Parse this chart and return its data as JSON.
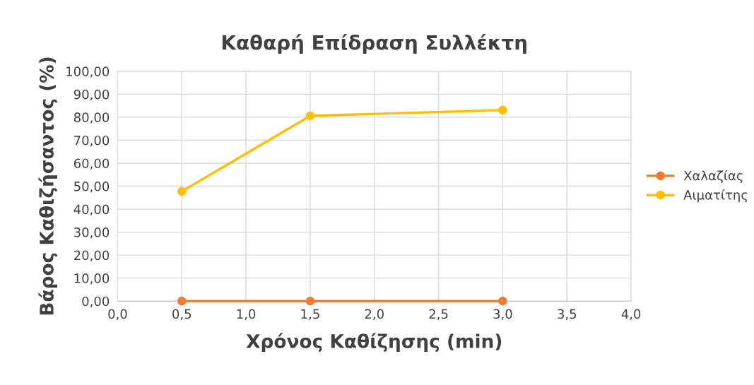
{
  "chart_data": {
    "type": "line",
    "title": "Καθαρή Επίδραση Συλλέκτη",
    "xlabel": "Χρόνος Καθίζησης (min)",
    "ylabel": "Βάρος Καθιζήσαντος (%)",
    "x": [
      0.5,
      1.5,
      3.0
    ],
    "series": [
      {
        "name": "Χαλαζίας",
        "color": "#ed7d31",
        "values": [
          0,
          0,
          0
        ]
      },
      {
        "name": "Αιματίτης",
        "color": "#ffc000",
        "values": [
          47.7,
          80.6,
          83.1
        ]
      }
    ],
    "xlim": [
      0,
      4
    ],
    "xticks": [
      {
        "value": 0,
        "label": "0,0"
      },
      {
        "value": 0.5,
        "label": "0,5"
      },
      {
        "value": 1,
        "label": "1,0"
      },
      {
        "value": 1.5,
        "label": "1,5"
      },
      {
        "value": 2,
        "label": "2,0"
      },
      {
        "value": 2.5,
        "label": "2,5"
      },
      {
        "value": 3,
        "label": "3,0"
      },
      {
        "value": 3.5,
        "label": "3,5"
      },
      {
        "value": 4,
        "label": "4,0"
      }
    ],
    "ylim": [
      0,
      100
    ],
    "yticks": [
      {
        "value": 0,
        "label": "0,00"
      },
      {
        "value": 10,
        "label": "10,00"
      },
      {
        "value": 20,
        "label": "20,00"
      },
      {
        "value": 30,
        "label": "30,00"
      },
      {
        "value": 40,
        "label": "40,00"
      },
      {
        "value": 50,
        "label": "50,00"
      },
      {
        "value": 60,
        "label": "60,00"
      },
      {
        "value": 70,
        "label": "70,00"
      },
      {
        "value": 80,
        "label": "80,00"
      },
      {
        "value": 90,
        "label": "90,00"
      },
      {
        "value": 100,
        "label": "100,00"
      }
    ],
    "grid": true,
    "legend": "right",
    "marker": "circle",
    "line_style": "solid"
  }
}
